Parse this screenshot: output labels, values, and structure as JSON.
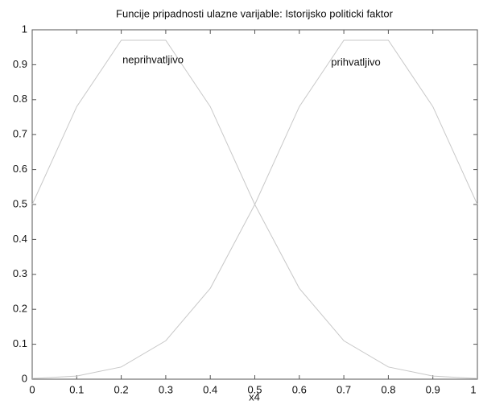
{
  "chart_data": {
    "type": "line",
    "title": "Funcije pripadnosti ulazne varijable: Istorijsko politicki faktor",
    "x_label": "x4",
    "annotations": [
      "neprihvatljivo",
      "prihvatljivo"
    ],
    "x": [
      0,
      0.1,
      0.2,
      0.3,
      0.4,
      0.5,
      0.6,
      0.7,
      0.8,
      0.9,
      1
    ],
    "series": [
      {
        "name": "neprihvatljivo",
        "color": "#c8c8c8",
        "values": [
          0.5,
          0.78,
          0.97,
          0.97,
          0.78,
          0.5,
          0.26,
          0.11,
          0.035,
          0.009,
          0.002
        ]
      },
      {
        "name": "prihvatljivo",
        "color": "#c8c8c8",
        "values": [
          0.002,
          0.009,
          0.035,
          0.11,
          0.26,
          0.5,
          0.78,
          0.97,
          0.97,
          0.78,
          0.5
        ]
      }
    ],
    "xlim": [
      0,
      1
    ],
    "ylim": [
      0,
      1
    ],
    "xticks": [
      0,
      0.1,
      0.2,
      0.3,
      0.4,
      0.5,
      0.6,
      0.7,
      0.8,
      0.9,
      1
    ],
    "yticks": [
      0,
      0.1,
      0.2,
      0.3,
      0.4,
      0.5,
      0.6,
      0.7,
      0.8,
      0.9,
      1
    ]
  }
}
